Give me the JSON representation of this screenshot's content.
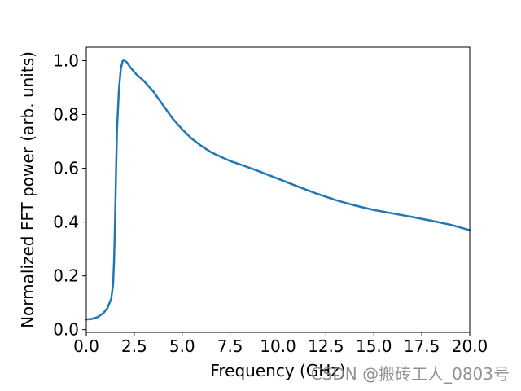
{
  "chart_data": {
    "type": "line",
    "xlabel": "Frequency (GHz)",
    "ylabel": "Normalized FFT power (arb. units)",
    "xlim": [
      0,
      20
    ],
    "ylim": [
      -0.01,
      1.05
    ],
    "xticks": [
      "0.0",
      "2.5",
      "5.0",
      "7.5",
      "10.0",
      "12.5",
      "15.0",
      "17.5",
      "20.0"
    ],
    "yticks": [
      "0.0",
      "0.2",
      "0.4",
      "0.6",
      "0.8",
      "1.0"
    ],
    "grid": false,
    "line_color": "#1f77b4",
    "series": [
      {
        "x": [
          0.0,
          0.3,
          0.6,
          0.9,
          1.1,
          1.3,
          1.4,
          1.45,
          1.5,
          1.55,
          1.6,
          1.7,
          1.8,
          1.9,
          2.0,
          2.1,
          2.3,
          2.6,
          3.0,
          3.5,
          4.0,
          4.5,
          5.0,
          5.5,
          6.0,
          6.5,
          7.0,
          7.5,
          8.0,
          9.0,
          10.0,
          11.0,
          12.0,
          13.0,
          14.0,
          15.0,
          16.0,
          17.0,
          18.0,
          19.0,
          20.0
        ],
        "y": [
          0.038,
          0.04,
          0.047,
          0.062,
          0.08,
          0.115,
          0.17,
          0.26,
          0.4,
          0.58,
          0.74,
          0.89,
          0.97,
          1.0,
          1.0,
          0.995,
          0.975,
          0.95,
          0.925,
          0.885,
          0.835,
          0.785,
          0.745,
          0.71,
          0.683,
          0.66,
          0.643,
          0.627,
          0.615,
          0.589,
          0.561,
          0.533,
          0.506,
          0.482,
          0.462,
          0.445,
          0.432,
          0.419,
          0.405,
          0.39,
          0.37
        ]
      }
    ]
  },
  "watermark": "CSDN @搬砖工人_0803号"
}
